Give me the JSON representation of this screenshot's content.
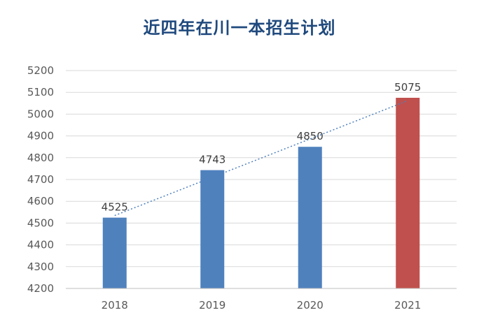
{
  "chart_data": {
    "type": "bar",
    "title": "近四年在川一本招生计划",
    "categories": [
      "2018",
      "2019",
      "2020",
      "2021"
    ],
    "values": [
      4525,
      4743,
      4850,
      5075
    ],
    "data_labels": [
      "4525",
      "4743",
      "4850",
      "5075"
    ],
    "ylim": [
      4200,
      5200
    ],
    "y_ticks": [
      4200,
      4300,
      4400,
      4500,
      4600,
      4700,
      4800,
      4900,
      5000,
      5100,
      5200
    ],
    "xlabel": "",
    "ylabel": "",
    "grid": true,
    "legend": "none",
    "trendline": {
      "type": "linear",
      "style": "dotted"
    },
    "colors": {
      "bar": "#4F81BD",
      "highlight_bar": "#C0504D",
      "trendline": "#4F81BD",
      "grid": "#D9D9D9",
      "title": "#1F497D"
    }
  }
}
